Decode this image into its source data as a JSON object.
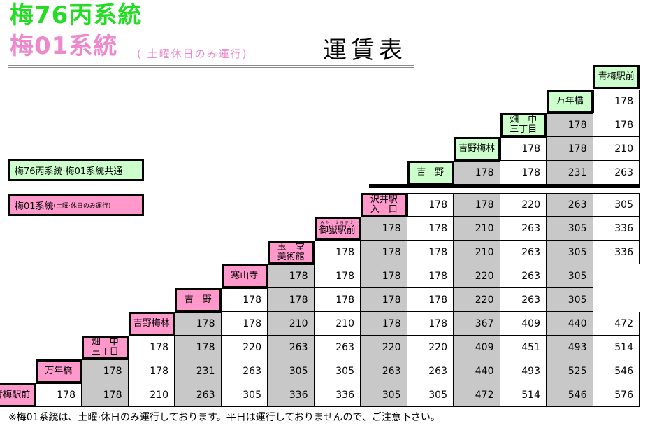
{
  "header": {
    "line1": "梅76丙系統",
    "line2": "梅01系統",
    "line2_note": "( 土曜休日のみ運行)",
    "title": "運賃表"
  },
  "legend": {
    "shared": "梅76丙系統·梅01系統共通",
    "pink_main": "梅01系統",
    "pink_note": "(土曜·休日のみ運行)"
  },
  "stations": [
    {
      "name_lines": [
        "青梅駅前"
      ],
      "group": "green"
    },
    {
      "name_lines": [
        "万年橋"
      ],
      "group": "green"
    },
    {
      "name_lines": [
        "畑　中",
        "三丁目"
      ],
      "group": "green"
    },
    {
      "name_lines": [
        "吉野梅林"
      ],
      "group": "green"
    },
    {
      "name_lines": [
        "吉　野"
      ],
      "group": "green"
    },
    {
      "name_lines": [
        "沢井駅",
        "入　口"
      ],
      "group": "pink"
    },
    {
      "name_lines": [
        "御嶽駅前"
      ],
      "ruby": "みたけえきまえ",
      "group": "pink"
    },
    {
      "name_lines": [
        "玉　堂",
        "美術館"
      ],
      "group": "pink"
    },
    {
      "name_lines": [
        "寒山寺"
      ],
      "group": "pink"
    },
    {
      "name_lines": [
        "吉　野"
      ],
      "group": "pink"
    },
    {
      "name_lines": [
        "吉野梅林"
      ],
      "group": "pink"
    },
    {
      "name_lines": [
        "畑　中",
        "三丁目"
      ],
      "group": "pink"
    },
    {
      "name_lines": [
        "万年橋"
      ],
      "group": "pink"
    },
    {
      "name_lines": [
        "青梅駅前"
      ],
      "group": "pink"
    }
  ],
  "fare_rows": [
    [],
    [
      "178"
    ],
    [
      "178",
      "178"
    ],
    [
      "178",
      "178",
      "210"
    ],
    [
      "178",
      "178",
      "231",
      "263"
    ],
    [
      "178",
      "178",
      "220",
      "263",
      "305"
    ],
    [
      "178",
      "178",
      "210",
      "263",
      "305",
      "336"
    ],
    [
      "178",
      "178",
      "178",
      "210",
      "263",
      "305",
      "336"
    ],
    [
      "178",
      "178",
      "178",
      "178",
      "220",
      "263",
      "305"
    ],
    [
      "178",
      "178",
      "178",
      "178",
      "178",
      "220",
      "263",
      "305"
    ],
    [
      "178",
      "178",
      "210",
      "210",
      "178",
      "178",
      "367",
      "409",
      "440",
      "472"
    ],
    [
      "178",
      "178",
      "220",
      "263",
      "263",
      "220",
      "220",
      "409",
      "451",
      "493",
      "514"
    ],
    [
      "178",
      "178",
      "231",
      "263",
      "305",
      "305",
      "263",
      "263",
      "440",
      "493",
      "525",
      "546"
    ],
    [
      "178",
      "178",
      "210",
      "263",
      "305",
      "336",
      "336",
      "305",
      "305",
      "472",
      "514",
      "546",
      "576"
    ]
  ],
  "footnote": "※梅01系統は、土曜·休日のみ運行しております。平日は運行しておりませんので、ご注意下さい。",
  "colors": {
    "green": "#22dd22",
    "pink": "#ee88cc",
    "green_fill": "#ccffcc",
    "pink_fill": "#ff99cc",
    "gray_fill": "#c8c8c8"
  }
}
